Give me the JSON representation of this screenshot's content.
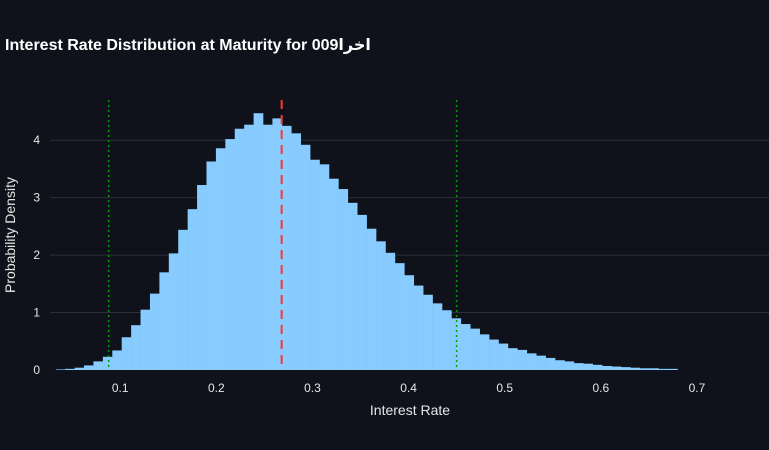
{
  "chart_data": {
    "type": "bar",
    "title": "Interest Rate Distribution at Maturity for 009اخرا",
    "xlabel": "Interest Rate",
    "ylabel": "Probability Density",
    "xlim": [
      0.027,
      0.775
    ],
    "ylim": [
      0,
      4.7
    ],
    "x_ticks": [
      0.1,
      0.2,
      0.3,
      0.4,
      0.5,
      0.6,
      0.7
    ],
    "x_tick_labels": [
      "0.1",
      "0.2",
      "0.3",
      "0.4",
      "0.5",
      "0.6",
      "0.7"
    ],
    "y_ticks": [
      0,
      1,
      2,
      3,
      4
    ],
    "y_tick_labels": [
      "0",
      "1",
      "2",
      "3",
      "4"
    ],
    "grid": true,
    "bin_start": 0.033,
    "bin_width": 0.0098,
    "values": [
      0.01,
      0.02,
      0.04,
      0.08,
      0.15,
      0.23,
      0.34,
      0.57,
      0.78,
      1.05,
      1.33,
      1.7,
      2.03,
      2.44,
      2.8,
      3.22,
      3.63,
      3.86,
      4.02,
      4.2,
      4.27,
      4.47,
      4.27,
      4.38,
      4.25,
      4.12,
      3.92,
      3.66,
      3.58,
      3.33,
      3.15,
      2.91,
      2.7,
      2.46,
      2.24,
      2.04,
      1.86,
      1.65,
      1.47,
      1.31,
      1.16,
      1.04,
      0.9,
      0.8,
      0.72,
      0.62,
      0.53,
      0.46,
      0.38,
      0.35,
      0.29,
      0.25,
      0.21,
      0.17,
      0.15,
      0.12,
      0.11,
      0.09,
      0.07,
      0.06,
      0.05,
      0.04,
      0.03,
      0.03,
      0.02,
      0.02
    ],
    "bar_color": "#87cbff",
    "reference_lines": [
      {
        "x": 0.088,
        "style": "dotted",
        "color": "#00a000"
      },
      {
        "x": 0.268,
        "style": "dashed",
        "color": "#ff3333"
      },
      {
        "x": 0.45,
        "style": "dotted",
        "color": "#00a000"
      }
    ]
  }
}
